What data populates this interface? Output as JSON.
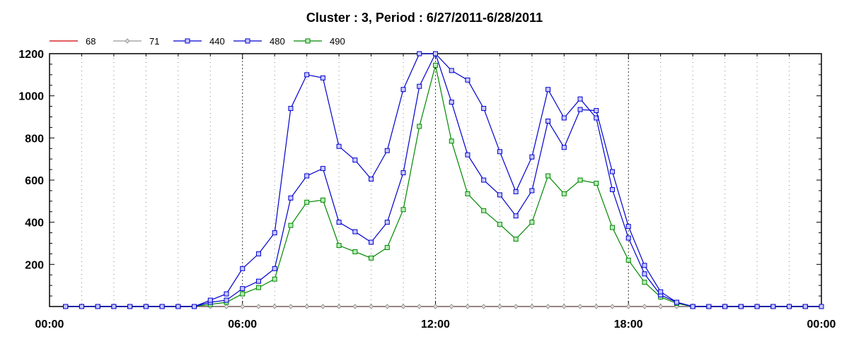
{
  "chart_data": {
    "type": "line",
    "title": "Cluster : 3, Period : 6/27/2011-6/28/2011",
    "xlabel": "",
    "ylabel": "",
    "x_ticks": [
      "00:00",
      "06:00",
      "12:00",
      "18:00",
      "00:00"
    ],
    "x_tick_hours": [
      0,
      6,
      12,
      18,
      24
    ],
    "xlim": [
      0,
      24
    ],
    "ylim": [
      0,
      1200
    ],
    "y_ticks": [
      200,
      400,
      600,
      800,
      1000,
      1200
    ],
    "grid": "vertical dotted lines every hour",
    "legend_position": "top-left, horizontal",
    "x": [
      0.5,
      1,
      1.5,
      2,
      2.5,
      3,
      3.5,
      4,
      4.5,
      5,
      5.5,
      6,
      6.5,
      7,
      7.5,
      8,
      8.5,
      9,
      9.5,
      10,
      10.5,
      11,
      11.5,
      12,
      12.5,
      13,
      13.5,
      14,
      14.5,
      15,
      15.5,
      16,
      16.5,
      17,
      17.5,
      18,
      18.5,
      19,
      19.5,
      20,
      20.5,
      21,
      21.5,
      22,
      22.5,
      23,
      23.5,
      24
    ],
    "series": [
      {
        "name": "68",
        "color": "#cc0000",
        "marker": "none",
        "values": [
          0,
          0,
          0,
          0,
          0,
          0,
          0,
          0,
          0,
          0,
          0,
          0,
          0,
          0,
          0,
          0,
          0,
          0,
          0,
          0,
          0,
          0,
          0,
          0,
          0,
          0,
          0,
          0,
          0,
          0,
          0,
          0,
          0,
          0,
          0,
          0,
          0,
          0,
          0,
          0,
          0,
          0,
          0,
          0,
          0,
          0,
          0,
          0
        ]
      },
      {
        "name": "71",
        "color": "#999999",
        "marker": "diamond",
        "values": [
          0,
          0,
          0,
          0,
          0,
          0,
          0,
          0,
          0,
          0,
          0,
          0,
          0,
          0,
          0,
          0,
          0,
          0,
          0,
          0,
          0,
          0,
          0,
          0,
          0,
          0,
          0,
          0,
          0,
          0,
          0,
          0,
          0,
          0,
          0,
          0,
          0,
          0,
          0,
          0,
          0,
          0,
          0,
          0,
          0,
          0,
          0,
          0
        ]
      },
      {
        "name": "440",
        "color": "#0000cc",
        "marker": "square",
        "values": [
          0,
          0,
          0,
          0,
          0,
          0,
          0,
          0,
          0,
          30,
          60,
          180,
          250,
          350,
          940,
          1100,
          1085,
          760,
          695,
          605,
          740,
          1030,
          1200,
          1200,
          970,
          720,
          600,
          530,
          430,
          550,
          880,
          755,
          935,
          930,
          640,
          380,
          195,
          70,
          20,
          0,
          0,
          0,
          0,
          0,
          0,
          0,
          0,
          0
        ]
      },
      {
        "name": "480",
        "color": "#0000cc",
        "marker": "square",
        "values": [
          0,
          0,
          0,
          0,
          0,
          0,
          0,
          0,
          0,
          20,
          30,
          85,
          120,
          180,
          515,
          620,
          655,
          400,
          355,
          305,
          400,
          635,
          1045,
          1200,
          1120,
          1075,
          940,
          735,
          545,
          710,
          1030,
          895,
          985,
          895,
          555,
          325,
          155,
          55,
          20,
          0,
          0,
          0,
          0,
          0,
          0,
          0,
          0,
          0
        ]
      },
      {
        "name": "490",
        "color": "#008800",
        "marker": "square",
        "values": [
          0,
          0,
          0,
          0,
          0,
          0,
          0,
          0,
          0,
          10,
          20,
          60,
          90,
          130,
          385,
          495,
          505,
          290,
          260,
          230,
          280,
          460,
          855,
          1145,
          785,
          535,
          455,
          390,
          320,
          400,
          620,
          535,
          600,
          585,
          375,
          220,
          115,
          45,
          15,
          0,
          0,
          0,
          0,
          0,
          0,
          0,
          0,
          0
        ]
      }
    ]
  }
}
